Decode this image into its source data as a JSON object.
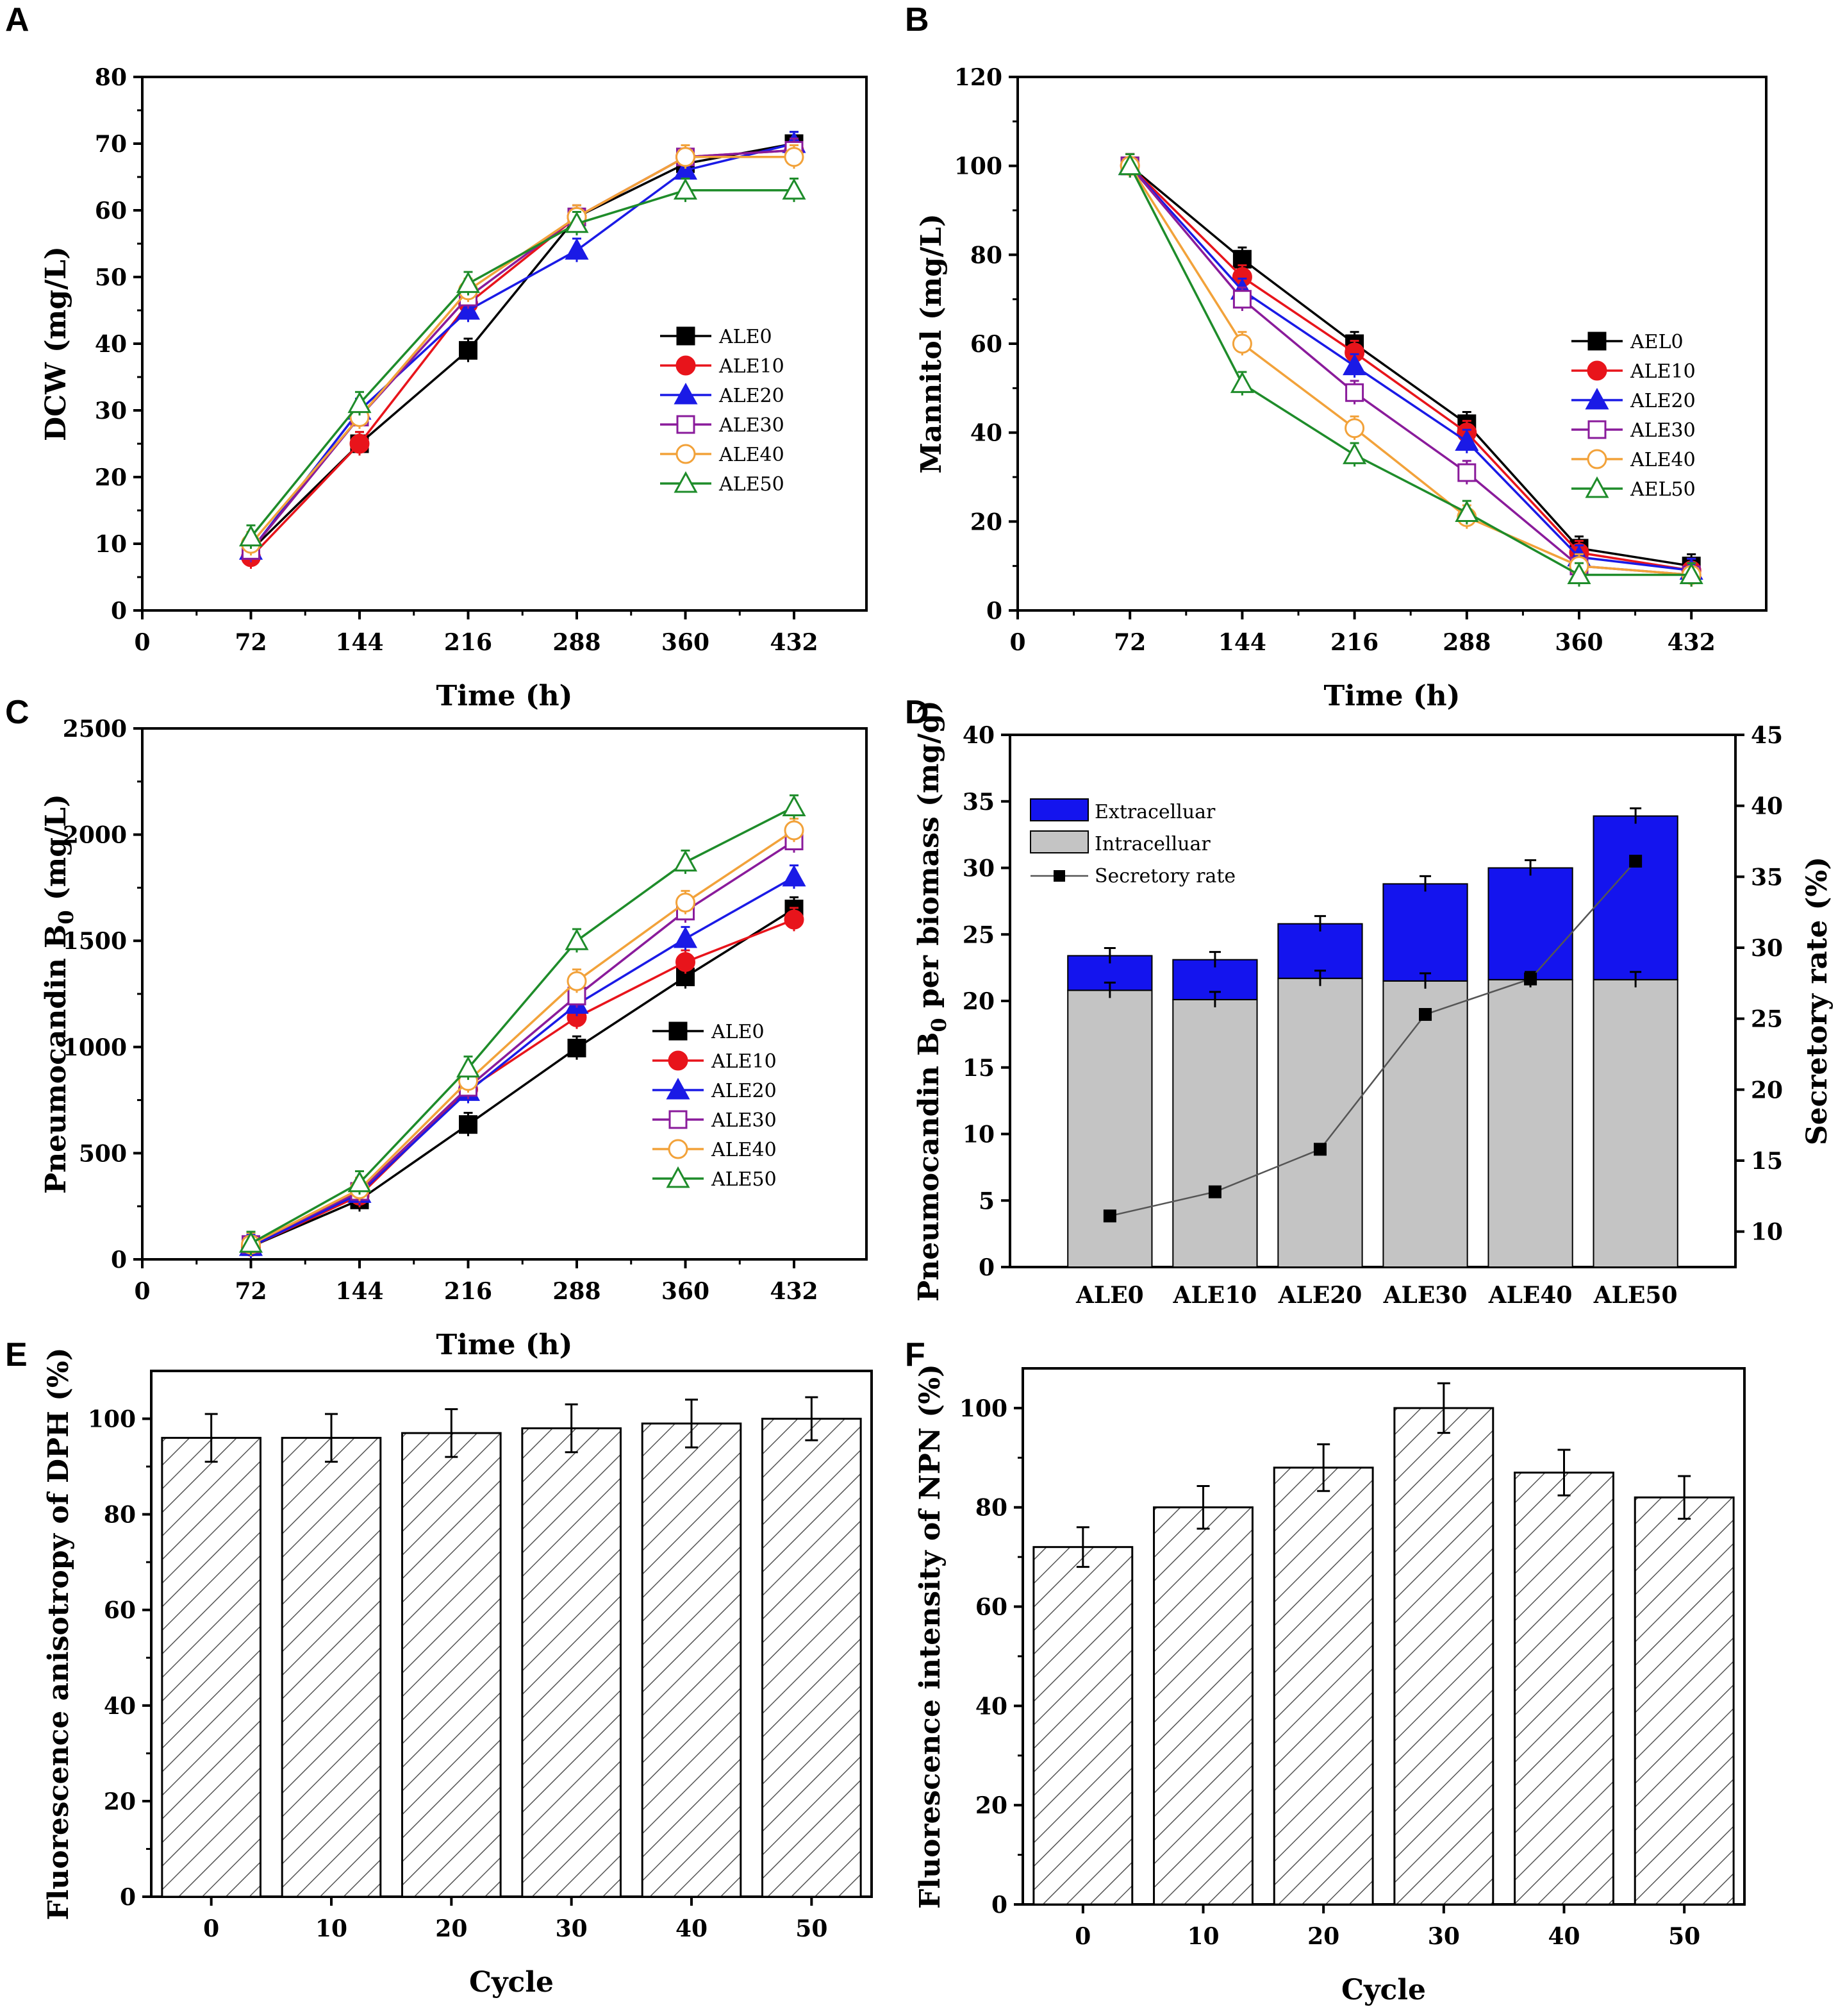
{
  "figure": {
    "panel_letters": [
      "A",
      "B",
      "C",
      "D",
      "E",
      "F"
    ]
  },
  "colors": {
    "ALE0": "#000000",
    "ALE10": "#e8141b",
    "ALE20": "#1a1ae6",
    "ALE30": "#8a1b9b",
    "ALE40": "#f2a23a",
    "ALE50": "#1e8c2a",
    "extracellular": "#1414ee",
    "intracellular": "#c4c4c4"
  },
  "chart_data": [
    {
      "id": "A",
      "type": "line",
      "xlabel": "Time (h)",
      "ylabel": "DCW (mg/L)",
      "xlim": [
        0,
        480
      ],
      "ylim": [
        0,
        80
      ],
      "xticks": [
        0,
        72,
        144,
        216,
        288,
        360,
        432
      ],
      "yticks": [
        0,
        10,
        20,
        30,
        40,
        50,
        60,
        70,
        80
      ],
      "x": [
        72,
        144,
        216,
        288,
        360,
        432
      ],
      "legend_position": "middle-right",
      "series": [
        {
          "name": "ALE0",
          "marker": "square-filled",
          "values": [
            9,
            25,
            39,
            59,
            67,
            70
          ]
        },
        {
          "name": "ALE10",
          "marker": "circle-filled",
          "values": [
            8,
            25,
            46,
            59,
            68,
            69
          ]
        },
        {
          "name": "ALE20",
          "marker": "triangle-filled",
          "values": [
            9,
            30,
            45,
            54,
            66,
            70
          ]
        },
        {
          "name": "ALE30",
          "marker": "square-open",
          "values": [
            9,
            29,
            47,
            59,
            68,
            69
          ]
        },
        {
          "name": "ALE40",
          "marker": "circle-open",
          "values": [
            10,
            29,
            48,
            59,
            68,
            68
          ]
        },
        {
          "name": "ALE50",
          "marker": "triangle-open",
          "values": [
            11,
            31,
            49,
            58,
            63,
            63
          ]
        }
      ]
    },
    {
      "id": "B",
      "type": "line",
      "xlabel": "Time (h)",
      "ylabel": "Mannitol (mg/L)",
      "xlim": [
        0,
        480
      ],
      "ylim": [
        0,
        120
      ],
      "xticks": [
        0,
        72,
        144,
        216,
        288,
        360,
        432
      ],
      "yticks": [
        0,
        20,
        40,
        60,
        80,
        100,
        120
      ],
      "x": [
        72,
        144,
        216,
        288,
        360,
        432
      ],
      "legend_position": "middle-right",
      "series": [
        {
          "name": "AEL0",
          "marker": "square-filled",
          "values": [
            100,
            79,
            60,
            42,
            14,
            10
          ]
        },
        {
          "name": "ALE10",
          "marker": "circle-filled",
          "values": [
            100,
            75,
            58,
            40,
            13,
            9
          ]
        },
        {
          "name": "ALE20",
          "marker": "triangle-filled",
          "values": [
            100,
            72,
            55,
            38,
            12,
            9
          ]
        },
        {
          "name": "ALE30",
          "marker": "square-open",
          "values": [
            100,
            70,
            49,
            31,
            10,
            8
          ]
        },
        {
          "name": "ALE40",
          "marker": "circle-open",
          "values": [
            100,
            60,
            41,
            21,
            10,
            8
          ]
        },
        {
          "name": "AEL50",
          "marker": "triangle-open",
          "values": [
            100,
            51,
            35,
            22,
            8,
            8
          ]
        }
      ]
    },
    {
      "id": "C",
      "type": "line",
      "xlabel": "Time (h)",
      "ylabel_main": "Pneumocandin B",
      "ylabel_sub": "0",
      "ylabel_tail": " (mg/L)",
      "xlim": [
        0,
        480
      ],
      "ylim": [
        0,
        2500
      ],
      "xticks": [
        0,
        72,
        144,
        216,
        288,
        360,
        432
      ],
      "yticks": [
        0,
        500,
        1000,
        1500,
        2000,
        2500
      ],
      "x": [
        72,
        144,
        216,
        288,
        360,
        432
      ],
      "legend_position": "bottom-right",
      "series": [
        {
          "name": "ALE0",
          "marker": "square-filled",
          "values": [
            60,
            280,
            635,
            995,
            1330,
            1650
          ]
        },
        {
          "name": "ALE10",
          "marker": "circle-filled",
          "values": [
            60,
            300,
            800,
            1140,
            1400,
            1600
          ]
        },
        {
          "name": "ALE20",
          "marker": "triangle-filled",
          "values": [
            60,
            310,
            790,
            1200,
            1510,
            1800
          ]
        },
        {
          "name": "ALE30",
          "marker": "square-open",
          "values": [
            70,
            320,
            810,
            1240,
            1640,
            1970
          ]
        },
        {
          "name": "ALE40",
          "marker": "circle-open",
          "values": [
            70,
            330,
            840,
            1310,
            1680,
            2020
          ]
        },
        {
          "name": "ALE50",
          "marker": "triangle-open",
          "values": [
            75,
            360,
            900,
            1500,
            1870,
            2130
          ]
        }
      ]
    },
    {
      "id": "D",
      "type": "bar",
      "subtype": "stacked-with-line",
      "categories": [
        "ALE0",
        "ALE10",
        "ALE20",
        "ALE30",
        "ALE40",
        "ALE50"
      ],
      "ylabel_main": "Pneumocandin B",
      "ylabel_sub": "0",
      "ylabel_tail": " per biomass (mg/g)",
      "y2label": "Secretory rate   (%)",
      "ylim": [
        0,
        40
      ],
      "y2lim": [
        7.5,
        45
      ],
      "yticks": [
        0,
        5,
        10,
        15,
        20,
        25,
        30,
        35,
        40
      ],
      "y2ticks": [
        10,
        15,
        20,
        25,
        30,
        35,
        40,
        45
      ],
      "legend_position": "top-left",
      "series": [
        {
          "name": "Intracelluar",
          "values": [
            20.8,
            20.1,
            21.7,
            21.5,
            21.6,
            21.6
          ]
        },
        {
          "name": "Extracelluar",
          "values": [
            2.6,
            3.0,
            4.1,
            7.3,
            8.4,
            12.3
          ]
        },
        {
          "name": "Secretory rate",
          "axis": "right",
          "values": [
            11.1,
            12.8,
            15.8,
            25.3,
            27.8,
            36.1
          ]
        }
      ]
    },
    {
      "id": "E",
      "type": "bar",
      "xlabel": "Cycle",
      "ylabel": "Fluorescence anisotropy of DPH (%)",
      "categories": [
        "0",
        "10",
        "20",
        "30",
        "40",
        "50"
      ],
      "values": [
        96,
        96,
        97,
        98,
        99,
        100
      ],
      "errors": [
        5,
        5,
        5,
        5,
        5,
        4.5
      ],
      "ylim": [
        0,
        110
      ],
      "yticks": [
        0,
        20,
        40,
        60,
        80,
        100
      ]
    },
    {
      "id": "F",
      "type": "bar",
      "xlabel": "Cycle",
      "ylabel": "Fluorescence intensity of NPN (%)",
      "categories": [
        "0",
        "10",
        "20",
        "30",
        "40",
        "50"
      ],
      "values": [
        72,
        80,
        88,
        100,
        87,
        82
      ],
      "errors": [
        4,
        4.3,
        4.7,
        5,
        4.6,
        4.3
      ],
      "ylim": [
        0,
        108
      ],
      "yticks": [
        0,
        20,
        40,
        60,
        80,
        100
      ]
    }
  ]
}
